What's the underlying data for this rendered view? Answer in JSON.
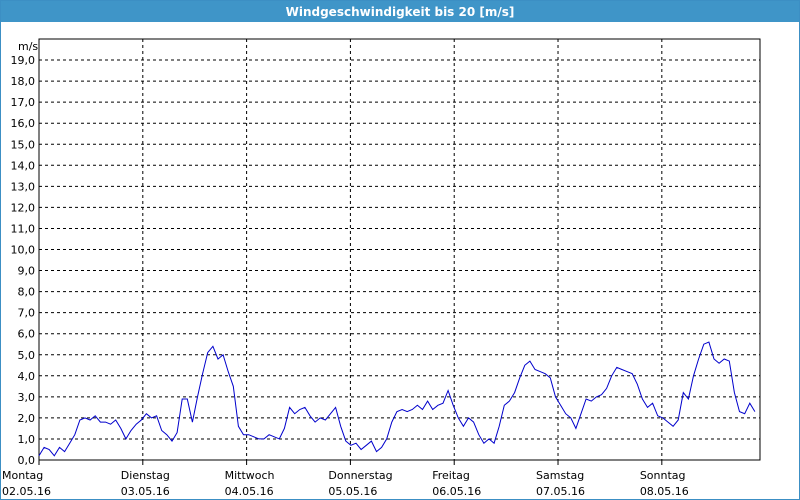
{
  "window": {
    "title": "Windgeschwindigkeit bis 20 [m/s]"
  },
  "colors": {
    "title_bar": "#3f95c8",
    "series_line": "#0000cc",
    "grid": "#000000",
    "background": "#ffffff"
  },
  "chart_data": {
    "type": "line",
    "title": "Windgeschwindigkeit bis 20 [m/s]",
    "ylabel": "m/s",
    "xlabel": "",
    "ylim": [
      0,
      20
    ],
    "grid": true,
    "yticks": [
      "0,0",
      "1,0",
      "2,0",
      "3,0",
      "4,0",
      "5,0",
      "6,0",
      "7,0",
      "8,0",
      "9,0",
      "10,0",
      "11,0",
      "12,0",
      "13,0",
      "14,0",
      "15,0",
      "16,0",
      "17,0",
      "18,0",
      "19,0"
    ],
    "days": [
      {
        "name": "Montag",
        "date": "02.05.16"
      },
      {
        "name": "Dienstag",
        "date": "03.05.16"
      },
      {
        "name": "Mittwoch",
        "date": "04.05.16"
      },
      {
        "name": "Donnerstag",
        "date": "05.05.16"
      },
      {
        "name": "Freitag",
        "date": "06.05.16"
      },
      {
        "name": "Samstag",
        "date": "07.05.16"
      },
      {
        "name": "Sonntag",
        "date": "08.05.16"
      }
    ],
    "x_unit": "hours since Montag 02.05.16 00:00",
    "series": [
      {
        "values": [
          [
            0,
            0.2
          ],
          [
            2,
            0.6
          ],
          [
            4,
            0.5
          ],
          [
            6,
            0.2
          ],
          [
            8,
            0.6
          ],
          [
            10,
            0.4
          ],
          [
            12,
            0.8
          ],
          [
            14,
            1.2
          ],
          [
            16,
            1.9
          ],
          [
            18,
            2.0
          ],
          [
            20,
            1.9
          ],
          [
            22,
            2.1
          ],
          [
            24,
            1.8
          ],
          [
            26,
            1.8
          ],
          [
            28,
            1.7
          ],
          [
            30,
            1.9
          ],
          [
            32,
            1.5
          ],
          [
            34,
            1.0
          ],
          [
            36,
            1.4
          ],
          [
            38,
            1.7
          ],
          [
            40,
            1.9
          ],
          [
            42,
            2.2
          ],
          [
            44,
            2.0
          ],
          [
            46,
            2.1
          ],
          [
            48,
            1.4
          ],
          [
            50,
            1.2
          ],
          [
            52,
            0.9
          ],
          [
            54,
            1.3
          ],
          [
            56,
            2.9
          ],
          [
            58,
            2.9
          ],
          [
            60,
            1.8
          ],
          [
            62,
            3.0
          ],
          [
            64,
            4.1
          ],
          [
            66,
            5.1
          ],
          [
            68,
            5.4
          ],
          [
            70,
            4.8
          ],
          [
            72,
            5.0
          ],
          [
            74,
            4.2
          ],
          [
            76,
            3.5
          ],
          [
            78,
            1.6
          ],
          [
            80,
            1.2
          ],
          [
            82,
            1.2
          ],
          [
            84,
            1.1
          ],
          [
            86,
            1.0
          ],
          [
            88,
            1.0
          ],
          [
            90,
            1.2
          ],
          [
            92,
            1.1
          ],
          [
            94,
            1.0
          ],
          [
            96,
            1.5
          ],
          [
            98,
            2.5
          ],
          [
            100,
            2.2
          ],
          [
            102,
            2.4
          ],
          [
            104,
            2.5
          ],
          [
            106,
            2.1
          ],
          [
            108,
            1.8
          ],
          [
            110,
            2.0
          ],
          [
            112,
            1.9
          ],
          [
            114,
            2.2
          ],
          [
            116,
            2.5
          ],
          [
            118,
            1.6
          ],
          [
            120,
            0.9
          ],
          [
            122,
            0.7
          ],
          [
            124,
            0.8
          ],
          [
            126,
            0.5
          ],
          [
            128,
            0.7
          ],
          [
            130,
            0.9
          ],
          [
            132,
            0.4
          ],
          [
            134,
            0.6
          ],
          [
            136,
            1.0
          ],
          [
            138,
            1.8
          ],
          [
            140,
            2.3
          ],
          [
            142,
            2.4
          ],
          [
            144,
            2.3
          ],
          [
            146,
            2.4
          ],
          [
            148,
            2.6
          ],
          [
            150,
            2.4
          ],
          [
            152,
            2.8
          ],
          [
            154,
            2.4
          ],
          [
            156,
            2.6
          ],
          [
            158,
            2.7
          ],
          [
            160,
            3.3
          ],
          [
            162,
            2.6
          ],
          [
            164,
            2.0
          ],
          [
            166,
            1.6
          ],
          [
            168,
            2.0
          ],
          [
            170,
            1.8
          ],
          [
            172,
            1.2
          ],
          [
            174,
            0.8
          ],
          [
            176,
            1.0
          ],
          [
            178,
            0.8
          ],
          [
            180,
            1.6
          ],
          [
            182,
            2.6
          ],
          [
            184,
            2.8
          ],
          [
            186,
            3.2
          ],
          [
            188,
            3.9
          ],
          [
            190,
            4.5
          ],
          [
            192,
            4.7
          ],
          [
            194,
            4.3
          ],
          [
            196,
            4.2
          ],
          [
            198,
            4.1
          ],
          [
            200,
            3.9
          ],
          [
            202,
            3.0
          ],
          [
            204,
            2.6
          ],
          [
            206,
            2.2
          ],
          [
            208,
            2.0
          ],
          [
            210,
            1.5
          ],
          [
            212,
            2.2
          ],
          [
            214,
            2.9
          ],
          [
            216,
            2.8
          ],
          [
            218,
            3.0
          ],
          [
            220,
            3.1
          ],
          [
            222,
            3.4
          ],
          [
            224,
            4.0
          ],
          [
            226,
            4.4
          ],
          [
            228,
            4.3
          ],
          [
            230,
            4.2
          ],
          [
            232,
            4.1
          ],
          [
            234,
            3.6
          ],
          [
            236,
            2.9
          ],
          [
            238,
            2.5
          ],
          [
            240,
            2.7
          ],
          [
            242,
            2.1
          ],
          [
            244,
            2.0
          ],
          [
            246,
            1.8
          ],
          [
            248,
            1.6
          ],
          [
            250,
            1.9
          ],
          [
            252,
            3.2
          ],
          [
            254,
            2.9
          ],
          [
            256,
            4.0
          ],
          [
            258,
            4.8
          ],
          [
            260,
            5.5
          ],
          [
            262,
            5.6
          ],
          [
            264,
            4.8
          ],
          [
            266,
            4.6
          ],
          [
            268,
            4.8
          ],
          [
            270,
            4.7
          ],
          [
            272,
            3.2
          ],
          [
            274,
            2.3
          ],
          [
            276,
            2.2
          ],
          [
            278,
            2.7
          ],
          [
            280,
            2.3
          ]
        ]
      }
    ]
  }
}
